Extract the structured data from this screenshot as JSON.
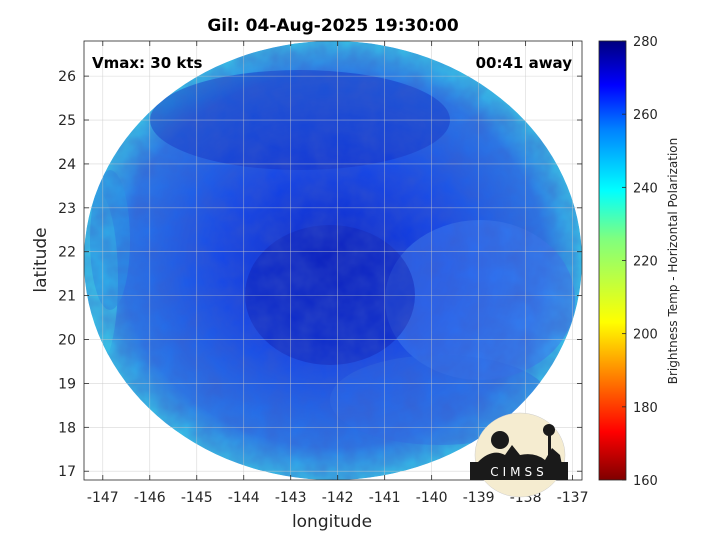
{
  "chart_data": {
    "type": "heatmap",
    "title": "Gil: 04-Aug-2025 19:30:00",
    "annotations": {
      "vmax": "Vmax: 30 kts",
      "time_away": "00:41 away"
    },
    "xlabel": "longitude",
    "ylabel": "latitude",
    "xlim": [
      -147.4,
      -136.8
    ],
    "ylim": [
      16.8,
      26.8
    ],
    "x_ticks": [
      -147,
      -146,
      -145,
      -144,
      -143,
      -142,
      -141,
      -140,
      -139,
      -138,
      -137
    ],
    "y_ticks": [
      17,
      18,
      19,
      20,
      21,
      22,
      23,
      24,
      25,
      26
    ],
    "grid": true,
    "colorbar": {
      "label": "Brightness Temp - Horizontal Polarization",
      "range": [
        160,
        280
      ],
      "ticks": [
        160,
        180,
        200,
        220,
        240,
        260,
        280
      ]
    },
    "swath": {
      "center": [
        -142.1,
        21.8
      ],
      "lon_radius": 5.3,
      "lat_radius": 5.0,
      "colors": {
        "core": "#0a22c8",
        "mid": "#1547e8",
        "outer": "#2a7ae8",
        "edge": "#37c6e8"
      }
    },
    "logo": {
      "text": "CIMSS"
    }
  }
}
